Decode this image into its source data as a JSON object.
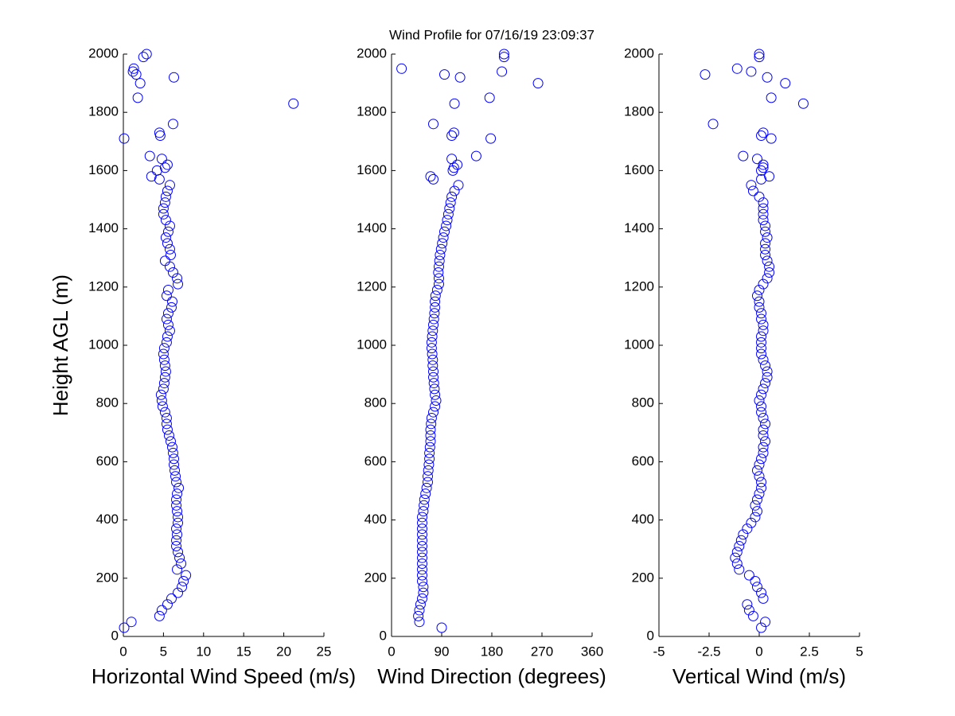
{
  "chart_data": [
    {
      "type": "scatter",
      "ylabel": "Height AGL (m)",
      "xlabel": "Horizontal Wind Speed (m/s)",
      "color": "#0000ff",
      "xlim": [
        0,
        25
      ],
      "xticks": [
        0,
        5,
        10,
        15,
        20,
        25
      ],
      "ylim": [
        0,
        2000
      ],
      "yticks": [
        0,
        200,
        400,
        600,
        800,
        1000,
        1200,
        1400,
        1600,
        1800,
        2000
      ],
      "x": [
        0.1,
        1,
        4.5,
        4.8,
        5.5,
        6,
        6.8,
        7.3,
        7.5,
        7.8,
        6.7,
        7.2,
        7,
        6.8,
        6.6,
        6.6,
        6.7,
        6.6,
        6.8,
        6.8,
        6.7,
        6.6,
        6.6,
        6.7,
        6.9,
        6.6,
        6.5,
        6.4,
        6.3,
        6.3,
        6.2,
        6.1,
        5.9,
        5.7,
        5.5,
        5.4,
        5.4,
        5.2,
        4.9,
        4.8,
        4.7,
        5.0,
        5.1,
        5.2,
        5.3,
        5.2,
        5.1,
        5.0,
        5.1,
        5.4,
        5.5,
        5.8,
        5.6,
        5.4,
        5.6,
        6.0,
        6.1,
        5.4,
        5.6,
        6.8,
        6.7,
        6.2,
        5.8,
        5.2,
        5.9,
        5.8,
        5.5,
        5.3,
        5.6,
        5.8,
        5.3,
        5.0,
        5.0,
        5.2,
        5.3,
        5.5,
        5.8,
        4.5,
        3.5,
        4.2,
        5.2,
        5.5,
        4.8,
        3.3,
        0.1,
        4.6,
        4.5,
        6.2,
        21.2,
        1.8,
        2.1,
        6.3,
        1.6,
        1.2,
        1.3,
        2.5,
        2.9
      ],
      "y": [
        30,
        50,
        70,
        90,
        110,
        130,
        150,
        170,
        190,
        210,
        230,
        250,
        270,
        290,
        310,
        330,
        350,
        370,
        390,
        410,
        430,
        450,
        470,
        490,
        510,
        530,
        550,
        570,
        590,
        610,
        630,
        650,
        670,
        690,
        710,
        730,
        750,
        770,
        790,
        810,
        830,
        850,
        870,
        890,
        910,
        930,
        950,
        970,
        990,
        1010,
        1030,
        1050,
        1070,
        1090,
        1110,
        1130,
        1150,
        1170,
        1190,
        1210,
        1230,
        1250,
        1270,
        1290,
        1310,
        1330,
        1350,
        1370,
        1390,
        1410,
        1430,
        1450,
        1470,
        1490,
        1510,
        1530,
        1550,
        1570,
        1580,
        1600,
        1610,
        1620,
        1640,
        1650,
        1710,
        1720,
        1730,
        1760,
        1830,
        1850,
        1900,
        1920,
        1930,
        1940,
        1950,
        1990,
        2000
      ]
    },
    {
      "type": "scatter",
      "title": "Wind Profile for  07/16/19 23:09:37",
      "xlabel": "Wind Direction (degrees)",
      "color": "#0000ff",
      "xlim": [
        0,
        360
      ],
      "xticks": [
        0,
        90,
        180,
        270,
        360
      ],
      "ylim": [
        0,
        2000
      ],
      "yticks": [
        0,
        200,
        400,
        600,
        800,
        1000,
        1200,
        1400,
        1600,
        1800,
        2000
      ],
      "x": [
        90,
        50,
        48,
        50,
        52,
        55,
        57,
        57,
        55,
        55,
        55,
        55,
        55,
        55,
        55,
        55,
        55,
        55,
        55,
        55,
        57,
        58,
        59,
        61,
        63,
        65,
        65,
        66,
        67,
        68,
        68,
        69,
        70,
        70,
        70,
        71,
        72,
        75,
        78,
        80,
        78,
        77,
        76,
        75,
        75,
        74,
        74,
        73,
        72,
        72,
        73,
        74,
        75,
        76,
        77,
        78,
        78,
        79,
        82,
        85,
        85,
        84,
        85,
        86,
        87,
        89,
        91,
        93,
        95,
        98,
        100,
        102,
        104,
        106,
        108,
        113,
        120,
        75,
        70,
        110,
        112,
        118,
        108,
        152,
        178,
        108,
        112,
        75,
        113,
        176,
        263,
        123,
        95,
        198,
        18,
        202,
        202
      ],
      "y": [
        30,
        50,
        70,
        90,
        110,
        130,
        150,
        170,
        190,
        210,
        230,
        250,
        270,
        290,
        310,
        330,
        350,
        370,
        390,
        410,
        430,
        450,
        470,
        490,
        510,
        530,
        550,
        570,
        590,
        610,
        630,
        650,
        670,
        690,
        710,
        730,
        750,
        770,
        790,
        810,
        830,
        850,
        870,
        890,
        910,
        930,
        950,
        970,
        990,
        1010,
        1030,
        1050,
        1070,
        1090,
        1110,
        1130,
        1150,
        1170,
        1190,
        1210,
        1230,
        1250,
        1270,
        1290,
        1310,
        1330,
        1350,
        1370,
        1390,
        1410,
        1430,
        1450,
        1470,
        1490,
        1510,
        1530,
        1550,
        1570,
        1580,
        1600,
        1610,
        1620,
        1640,
        1650,
        1710,
        1720,
        1730,
        1760,
        1830,
        1850,
        1900,
        1920,
        1930,
        1940,
        1950,
        1990,
        2000
      ]
    },
    {
      "type": "scatter",
      "xlabel": "Vertical Wind (m/s)",
      "color": "#0000ff",
      "xlim": [
        -5,
        5
      ],
      "xticks": [
        -5,
        -2.5,
        0,
        2.5,
        5
      ],
      "ylim": [
        0,
        2000
      ],
      "yticks": [
        0,
        200,
        400,
        600,
        800,
        1000,
        1200,
        1400,
        1600,
        1800,
        2000
      ],
      "x": [
        0.1,
        0.3,
        -0.3,
        -0.5,
        -0.6,
        0.2,
        0.1,
        -0.1,
        -0.2,
        -0.5,
        -1.0,
        -1.1,
        -1.2,
        -1.1,
        -1.0,
        -0.9,
        -0.8,
        -0.6,
        -0.4,
        -0.2,
        -0.1,
        -0.2,
        -0.1,
        0.0,
        0.1,
        0.1,
        0.0,
        -0.1,
        0.0,
        0.1,
        0.2,
        0.2,
        0.3,
        0.2,
        0.2,
        0.3,
        0.2,
        0.1,
        0.1,
        0.0,
        0.1,
        0.2,
        0.3,
        0.4,
        0.4,
        0.3,
        0.2,
        0.1,
        0.1,
        0.1,
        0.1,
        0.2,
        0.2,
        0.1,
        0.1,
        0.0,
        0.0,
        -0.1,
        0.0,
        0.2,
        0.4,
        0.5,
        0.5,
        0.4,
        0.3,
        0.3,
        0.3,
        0.4,
        0.3,
        0.3,
        0.2,
        0.2,
        0.2,
        0.2,
        0.0,
        -0.3,
        -0.4,
        0.1,
        0.5,
        0.1,
        0.2,
        0.2,
        -0.1,
        -0.8,
        0.6,
        0.1,
        0.2,
        -2.3,
        2.2,
        0.6,
        1.3,
        0.4,
        -2.7,
        -0.4,
        -1.1,
        0.0,
        0.0
      ],
      "y": [
        30,
        50,
        70,
        90,
        110,
        130,
        150,
        170,
        190,
        210,
        230,
        250,
        270,
        290,
        310,
        330,
        350,
        370,
        390,
        410,
        430,
        450,
        470,
        490,
        510,
        530,
        550,
        570,
        590,
        610,
        630,
        650,
        670,
        690,
        710,
        730,
        750,
        770,
        790,
        810,
        830,
        850,
        870,
        890,
        910,
        930,
        950,
        970,
        990,
        1010,
        1030,
        1050,
        1070,
        1090,
        1110,
        1130,
        1150,
        1170,
        1190,
        1210,
        1230,
        1250,
        1270,
        1290,
        1310,
        1330,
        1350,
        1370,
        1390,
        1410,
        1430,
        1450,
        1470,
        1490,
        1510,
        1530,
        1550,
        1570,
        1580,
        1600,
        1610,
        1620,
        1640,
        1650,
        1710,
        1720,
        1730,
        1760,
        1830,
        1850,
        1900,
        1920,
        1930,
        1940,
        1950,
        1990,
        2000
      ]
    }
  ]
}
